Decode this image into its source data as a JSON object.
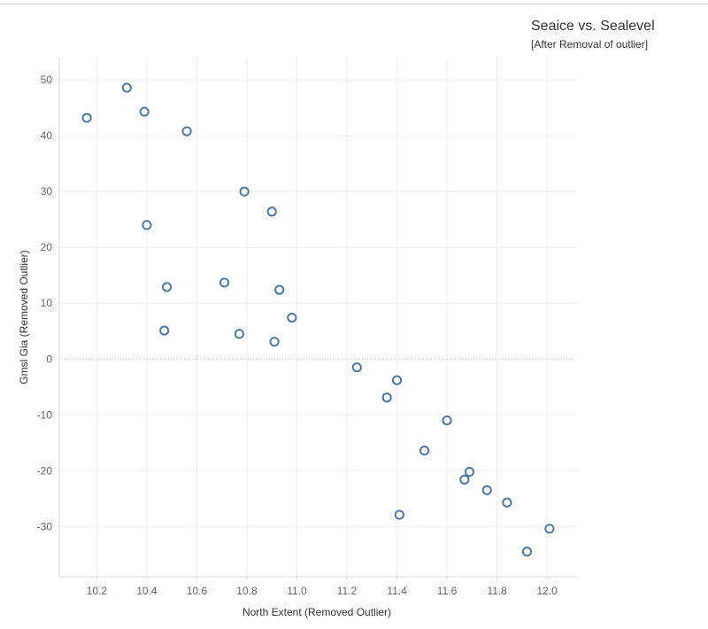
{
  "chart_data": {
    "type": "scatter",
    "title": "Seaice vs. Sealevel",
    "subtitle": "[After Removal of outlier]",
    "xlabel": "North Extent (Removed Outlier)",
    "ylabel": "Gmsl Gia (Removed Outlier)",
    "xlim": [
      10.05,
      12.12
    ],
    "ylim": [
      -39,
      54
    ],
    "xticks": [
      "10.2",
      "10.4",
      "10.6",
      "10.8",
      "11.0",
      "11.2",
      "11.4",
      "11.6",
      "11.8",
      "12.0"
    ],
    "yticks": [
      "50",
      "40",
      "30",
      "20",
      "10",
      "0",
      "-10",
      "-20",
      "-30"
    ],
    "grid": true,
    "zero_line": true,
    "marker": "hollow-circle",
    "point_color": "#4e79a7",
    "points": [
      {
        "x": 10.16,
        "y": 43.2
      },
      {
        "x": 10.32,
        "y": 48.6
      },
      {
        "x": 10.39,
        "y": 44.3
      },
      {
        "x": 10.56,
        "y": 40.8
      },
      {
        "x": 10.4,
        "y": 24.0
      },
      {
        "x": 10.79,
        "y": 30.0
      },
      {
        "x": 10.9,
        "y": 26.4
      },
      {
        "x": 10.48,
        "y": 12.9
      },
      {
        "x": 10.47,
        "y": 5.1
      },
      {
        "x": 10.71,
        "y": 13.7
      },
      {
        "x": 10.77,
        "y": 4.5
      },
      {
        "x": 10.91,
        "y": 3.1
      },
      {
        "x": 10.93,
        "y": 12.4
      },
      {
        "x": 10.98,
        "y": 7.4
      },
      {
        "x": 11.24,
        "y": -1.5
      },
      {
        "x": 11.4,
        "y": -3.8
      },
      {
        "x": 11.36,
        "y": -6.9
      },
      {
        "x": 11.6,
        "y": -11.0
      },
      {
        "x": 11.51,
        "y": -16.4
      },
      {
        "x": 11.69,
        "y": -20.2
      },
      {
        "x": 11.67,
        "y": -21.6
      },
      {
        "x": 11.76,
        "y": -23.5
      },
      {
        "x": 11.84,
        "y": -25.7
      },
      {
        "x": 11.41,
        "y": -27.9
      },
      {
        "x": 12.01,
        "y": -30.4
      },
      {
        "x": 11.92,
        "y": -34.5
      }
    ]
  }
}
